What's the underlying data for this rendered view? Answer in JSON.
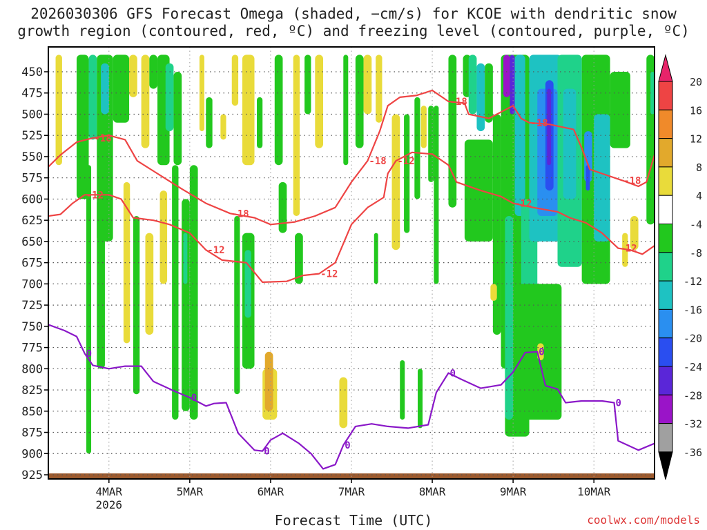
{
  "chart_data": {
    "type": "heatmap",
    "title_line1": "2026030306 GFS Forecast Omega (shaded, −cm/s) for KCOE with dendritic snow",
    "title_line2": "growth region (contoured, red, ºC) and freezing level (contoured, purple, ºC)",
    "xlabel": "Forecast Time (UTC)",
    "credit": "coolwx.com/models",
    "y_ticks": [
      450,
      475,
      500,
      525,
      550,
      575,
      600,
      625,
      650,
      675,
      700,
      725,
      750,
      775,
      800,
      825,
      850,
      875,
      900,
      925
    ],
    "x_ticks": [
      {
        "label": "4MAR",
        "sub": "2026",
        "t": 4.0
      },
      {
        "label": "5MAR",
        "sub": "",
        "t": 5.0
      },
      {
        "label": "6MAR",
        "sub": "",
        "t": 6.0
      },
      {
        "label": "7MAR",
        "sub": "",
        "t": 7.0
      },
      {
        "label": "8MAR",
        "sub": "",
        "t": 8.0
      },
      {
        "label": "9MAR",
        "sub": "",
        "t": 9.0
      },
      {
        "label": "10MAR",
        "sub": "",
        "t": 10.0
      }
    ],
    "t_range": [
      3.25,
      10.75
    ],
    "colorbar_levels": [
      20,
      16,
      12,
      8,
      4,
      -4,
      -8,
      -12,
      -16,
      -20,
      -24,
      -28,
      -32,
      -36
    ],
    "colorbar_colors": [
      "#e8246a",
      "#ee4444",
      "#f08a2a",
      "#e2a92c",
      "#e9db3a",
      "#ffffff",
      "#22c81e",
      "#1fd28a",
      "#1ec2c2",
      "#2a8ff0",
      "#2a4ef0",
      "#5a26d8",
      "#9a14c8",
      "#a0a0a0",
      "#000000"
    ],
    "omega_colors": {
      "strong_up": "#e2a92c",
      "weak_up": "#e9db3a",
      "weak_down": "#22c81e",
      "mod_down": "#1fd28a",
      "strong_down": "#1ec2c2",
      "very_strong_down": "#2a8ff0",
      "extreme_down": "#2a4ef0",
      "max_down": "#5a26d8",
      "peak_down": "#9a14c8"
    },
    "contour_labels": {
      "red": [
        "-18",
        "-18",
        "-18",
        "-18",
        "-18",
        "-12",
        "-12",
        "-12",
        "-12",
        "-12",
        "-12",
        "-18"
      ],
      "purple": [
        "0",
        "0",
        "0",
        "0",
        "0",
        "0",
        "0"
      ]
    },
    "isotherm_minus18": [
      [
        3.25,
        562
      ],
      [
        3.4,
        548
      ],
      [
        3.6,
        533
      ],
      [
        3.8,
        528
      ],
      [
        4.0,
        525
      ],
      [
        4.2,
        530
      ],
      [
        4.35,
        555
      ],
      [
        4.6,
        570
      ],
      [
        4.9,
        588
      ],
      [
        5.2,
        605
      ],
      [
        5.5,
        617
      ],
      [
        5.8,
        622
      ],
      [
        6.0,
        630
      ],
      [
        6.3,
        627
      ],
      [
        6.55,
        620
      ],
      [
        6.8,
        610
      ],
      [
        7.0,
        580
      ],
      [
        7.2,
        555
      ],
      [
        7.35,
        520
      ],
      [
        7.45,
        490
      ],
      [
        7.6,
        480
      ],
      [
        7.8,
        478
      ],
      [
        8.0,
        472
      ],
      [
        8.2,
        485
      ],
      [
        8.4,
        487
      ],
      [
        8.45,
        500
      ],
      [
        8.7,
        505
      ],
      [
        8.9,
        495
      ],
      [
        9.0,
        490
      ],
      [
        9.1,
        505
      ],
      [
        9.2,
        510
      ],
      [
        9.45,
        512
      ],
      [
        9.6,
        515
      ],
      [
        9.75,
        518
      ],
      [
        9.85,
        540
      ],
      [
        9.95,
        565
      ],
      [
        10.1,
        570
      ],
      [
        10.35,
        578
      ],
      [
        10.55,
        585
      ],
      [
        10.65,
        580
      ],
      [
        10.75,
        548
      ]
    ],
    "isotherm_minus12": [
      [
        3.25,
        620
      ],
      [
        3.4,
        618
      ],
      [
        3.55,
        605
      ],
      [
        3.7,
        595
      ],
      [
        4.0,
        595
      ],
      [
        4.15,
        600
      ],
      [
        4.3,
        622
      ],
      [
        4.55,
        625
      ],
      [
        4.75,
        630
      ],
      [
        5.0,
        640
      ],
      [
        5.2,
        660
      ],
      [
        5.4,
        672
      ],
      [
        5.7,
        675
      ],
      [
        5.9,
        698
      ],
      [
        6.2,
        697
      ],
      [
        6.4,
        690
      ],
      [
        6.6,
        688
      ],
      [
        6.8,
        675
      ],
      [
        7.0,
        630
      ],
      [
        7.2,
        610
      ],
      [
        7.4,
        598
      ],
      [
        7.45,
        570
      ],
      [
        7.55,
        555
      ],
      [
        7.75,
        545
      ],
      [
        8.0,
        547
      ],
      [
        8.2,
        560
      ],
      [
        8.3,
        580
      ],
      [
        8.6,
        590
      ],
      [
        8.85,
        597
      ],
      [
        9.0,
        605
      ],
      [
        9.25,
        610
      ],
      [
        9.55,
        615
      ],
      [
        9.7,
        622
      ],
      [
        9.9,
        628
      ],
      [
        10.1,
        640
      ],
      [
        10.3,
        658
      ],
      [
        10.45,
        660
      ],
      [
        10.6,
        665
      ],
      [
        10.75,
        655
      ]
    ],
    "freezing_level": [
      [
        3.25,
        748
      ],
      [
        3.45,
        755
      ],
      [
        3.6,
        762
      ],
      [
        3.7,
        782
      ],
      [
        3.8,
        796
      ],
      [
        4.0,
        800
      ],
      [
        4.2,
        797
      ],
      [
        4.4,
        797
      ],
      [
        4.55,
        815
      ],
      [
        4.8,
        826
      ],
      [
        5.0,
        834
      ],
      [
        5.2,
        844
      ],
      [
        5.3,
        841
      ],
      [
        5.45,
        840
      ],
      [
        5.6,
        876
      ],
      [
        5.8,
        896
      ],
      [
        5.9,
        897
      ],
      [
        6.0,
        884
      ],
      [
        6.15,
        876
      ],
      [
        6.35,
        888
      ],
      [
        6.5,
        900
      ],
      [
        6.65,
        918
      ],
      [
        6.8,
        913
      ],
      [
        6.9,
        890
      ],
      [
        7.05,
        868
      ],
      [
        7.25,
        865
      ],
      [
        7.45,
        868
      ],
      [
        7.7,
        870
      ],
      [
        7.95,
        866
      ],
      [
        8.05,
        828
      ],
      [
        8.2,
        805
      ],
      [
        8.35,
        812
      ],
      [
        8.6,
        823
      ],
      [
        8.85,
        819
      ],
      [
        9.0,
        804
      ],
      [
        9.15,
        781
      ],
      [
        9.3,
        780
      ],
      [
        9.4,
        820
      ],
      [
        9.55,
        824
      ],
      [
        9.65,
        840
      ],
      [
        9.85,
        838
      ],
      [
        10.0,
        838
      ],
      [
        10.1,
        838
      ],
      [
        10.25,
        840
      ],
      [
        10.3,
        885
      ],
      [
        10.55,
        896
      ],
      [
        10.75,
        888
      ]
    ],
    "omega_patches": [
      {
        "t0": 3.34,
        "t1": 3.42,
        "p0": 430,
        "p1": 560,
        "c": "weak_up"
      },
      {
        "t0": 3.6,
        "t1": 3.75,
        "p0": 430,
        "p1": 600,
        "c": "weak_down"
      },
      {
        "t0": 3.75,
        "t1": 3.85,
        "p0": 430,
        "p1": 530,
        "c": "mod_down"
      },
      {
        "t0": 3.85,
        "t1": 4.05,
        "p0": 430,
        "p1": 650,
        "c": "weak_down"
      },
      {
        "t0": 3.9,
        "t1": 4.0,
        "p0": 440,
        "p1": 500,
        "c": "strong_down"
      },
      {
        "t0": 4.05,
        "t1": 4.25,
        "p0": 430,
        "p1": 510,
        "c": "weak_down"
      },
      {
        "t0": 4.25,
        "t1": 4.35,
        "p0": 430,
        "p1": 480,
        "c": "weak_up"
      },
      {
        "t0": 4.4,
        "t1": 4.5,
        "p0": 430,
        "p1": 540,
        "c": "weak_up"
      },
      {
        "t0": 4.5,
        "t1": 4.6,
        "p0": 430,
        "p1": 470,
        "c": "weak_down"
      },
      {
        "t0": 4.6,
        "t1": 4.75,
        "p0": 430,
        "p1": 560,
        "c": "weak_down"
      },
      {
        "t0": 4.7,
        "t1": 4.8,
        "p0": 440,
        "p1": 520,
        "c": "mod_down"
      },
      {
        "t0": 4.8,
        "t1": 4.9,
        "p0": 450,
        "p1": 560,
        "c": "weak_down"
      },
      {
        "t0": 3.72,
        "t1": 3.78,
        "p0": 560,
        "p1": 900,
        "c": "weak_down"
      },
      {
        "t0": 3.85,
        "t1": 3.95,
        "p0": 600,
        "p1": 800,
        "c": "weak_down"
      },
      {
        "t0": 4.18,
        "t1": 4.26,
        "p0": 580,
        "p1": 770,
        "c": "weak_up"
      },
      {
        "t0": 4.3,
        "t1": 4.38,
        "p0": 620,
        "p1": 830,
        "c": "weak_down"
      },
      {
        "t0": 4.45,
        "t1": 4.55,
        "p0": 640,
        "p1": 760,
        "c": "weak_up"
      },
      {
        "t0": 4.63,
        "t1": 4.72,
        "p0": 590,
        "p1": 700,
        "c": "weak_up"
      },
      {
        "t0": 4.78,
        "t1": 4.86,
        "p0": 560,
        "p1": 860,
        "c": "weak_down"
      },
      {
        "t0": 4.9,
        "t1": 5.0,
        "p0": 600,
        "p1": 850,
        "c": "weak_down"
      },
      {
        "t0": 4.92,
        "t1": 4.97,
        "p0": 640,
        "p1": 700,
        "c": "mod_down"
      },
      {
        "t0": 5.0,
        "t1": 5.1,
        "p0": 560,
        "p1": 860,
        "c": "weak_down"
      },
      {
        "t0": 5.12,
        "t1": 5.18,
        "p0": 430,
        "p1": 520,
        "c": "weak_up"
      },
      {
        "t0": 5.2,
        "t1": 5.28,
        "p0": 480,
        "p1": 540,
        "c": "weak_down"
      },
      {
        "t0": 5.38,
        "t1": 5.45,
        "p0": 500,
        "p1": 530,
        "c": "weak_up"
      },
      {
        "t0": 5.52,
        "t1": 5.6,
        "p0": 430,
        "p1": 490,
        "c": "weak_up"
      },
      {
        "t0": 5.65,
        "t1": 5.8,
        "p0": 430,
        "p1": 560,
        "c": "weak_up"
      },
      {
        "t0": 5.55,
        "t1": 5.62,
        "p0": 620,
        "p1": 830,
        "c": "weak_down"
      },
      {
        "t0": 5.65,
        "t1": 5.8,
        "p0": 640,
        "p1": 800,
        "c": "weak_down"
      },
      {
        "t0": 5.68,
        "t1": 5.76,
        "p0": 660,
        "p1": 740,
        "c": "mod_down"
      },
      {
        "t0": 5.83,
        "t1": 5.9,
        "p0": 480,
        "p1": 540,
        "c": "weak_down"
      },
      {
        "t0": 5.9,
        "t1": 6.08,
        "p0": 800,
        "p1": 860,
        "c": "weak_up"
      },
      {
        "t0": 5.93,
        "t1": 6.03,
        "p0": 780,
        "p1": 850,
        "c": "strong_up"
      },
      {
        "t0": 6.05,
        "t1": 6.15,
        "p0": 430,
        "p1": 560,
        "c": "weak_down"
      },
      {
        "t0": 6.1,
        "t1": 6.2,
        "p0": 580,
        "p1": 640,
        "c": "weak_down"
      },
      {
        "t0": 6.28,
        "t1": 6.36,
        "p0": 430,
        "p1": 620,
        "c": "weak_up"
      },
      {
        "t0": 6.3,
        "t1": 6.4,
        "p0": 640,
        "p1": 700,
        "c": "weak_down"
      },
      {
        "t0": 6.42,
        "t1": 6.5,
        "p0": 430,
        "p1": 500,
        "c": "weak_down"
      },
      {
        "t0": 6.55,
        "t1": 6.65,
        "p0": 430,
        "p1": 540,
        "c": "weak_up"
      },
      {
        "t0": 6.85,
        "t1": 6.95,
        "p0": 810,
        "p1": 870,
        "c": "weak_up"
      },
      {
        "t0": 6.9,
        "t1": 6.96,
        "p0": 430,
        "p1": 560,
        "c": "weak_down"
      },
      {
        "t0": 7.05,
        "t1": 7.15,
        "p0": 430,
        "p1": 540,
        "c": "weak_down"
      },
      {
        "t0": 7.15,
        "t1": 7.25,
        "p0": 430,
        "p1": 500,
        "c": "weak_up"
      },
      {
        "t0": 7.3,
        "t1": 7.38,
        "p0": 430,
        "p1": 510,
        "c": "weak_up"
      },
      {
        "t0": 7.5,
        "t1": 7.6,
        "p0": 500,
        "p1": 660,
        "c": "weak_up"
      },
      {
        "t0": 7.65,
        "t1": 7.72,
        "p0": 500,
        "p1": 640,
        "c": "weak_down"
      },
      {
        "t0": 7.78,
        "t1": 7.85,
        "p0": 480,
        "p1": 600,
        "c": "weak_down"
      },
      {
        "t0": 7.86,
        "t1": 7.93,
        "p0": 490,
        "p1": 540,
        "c": "weak_up"
      },
      {
        "t0": 7.95,
        "t1": 8.02,
        "p0": 490,
        "p1": 580,
        "c": "weak_down"
      },
      {
        "t0": 8.02,
        "t1": 8.08,
        "p0": 490,
        "p1": 700,
        "c": "weak_down"
      },
      {
        "t0": 8.2,
        "t1": 8.3,
        "p0": 430,
        "p1": 610,
        "c": "weak_down"
      },
      {
        "t0": 8.38,
        "t1": 8.48,
        "p0": 430,
        "p1": 480,
        "c": "weak_down"
      },
      {
        "t0": 8.4,
        "t1": 8.75,
        "p0": 530,
        "p1": 650,
        "c": "weak_down"
      },
      {
        "t0": 8.45,
        "t1": 8.55,
        "p0": 430,
        "p1": 500,
        "c": "mod_down"
      },
      {
        "t0": 8.55,
        "t1": 8.65,
        "p0": 440,
        "p1": 520,
        "c": "strong_down"
      },
      {
        "t0": 8.65,
        "t1": 8.75,
        "p0": 440,
        "p1": 510,
        "c": "weak_down"
      },
      {
        "t0": 8.75,
        "t1": 8.85,
        "p0": 500,
        "p1": 760,
        "c": "weak_down"
      },
      {
        "t0": 8.85,
        "t1": 9.0,
        "p0": 430,
        "p1": 800,
        "c": "weak_down"
      },
      {
        "t0": 8.9,
        "t1": 9.2,
        "p0": 430,
        "p1": 880,
        "c": "weak_down"
      },
      {
        "t0": 8.9,
        "t1": 9.0,
        "p0": 620,
        "p1": 860,
        "c": "mod_down"
      },
      {
        "t0": 8.88,
        "t1": 8.96,
        "p0": 430,
        "p1": 480,
        "c": "peak_down"
      },
      {
        "t0": 8.96,
        "t1": 9.02,
        "p0": 430,
        "p1": 500,
        "c": "max_down"
      },
      {
        "t0": 9.02,
        "t1": 9.15,
        "p0": 430,
        "p1": 620,
        "c": "strong_down"
      },
      {
        "t0": 9.1,
        "t1": 9.3,
        "p0": 600,
        "p1": 800,
        "c": "mod_down"
      },
      {
        "t0": 9.2,
        "t1": 9.6,
        "p0": 430,
        "p1": 650,
        "c": "strong_down"
      },
      {
        "t0": 9.3,
        "t1": 9.55,
        "p0": 470,
        "p1": 620,
        "c": "very_strong_down"
      },
      {
        "t0": 9.4,
        "t1": 9.5,
        "p0": 460,
        "p1": 590,
        "c": "extreme_down"
      },
      {
        "t0": 9.42,
        "t1": 9.47,
        "p0": 470,
        "p1": 560,
        "c": "max_down"
      },
      {
        "t0": 9.55,
        "t1": 9.85,
        "p0": 430,
        "p1": 680,
        "c": "mod_down"
      },
      {
        "t0": 9.62,
        "t1": 9.78,
        "p0": 470,
        "p1": 600,
        "c": "strong_down"
      },
      {
        "t0": 9.85,
        "t1": 10.2,
        "p0": 430,
        "p1": 700,
        "c": "weak_down"
      },
      {
        "t0": 9.88,
        "t1": 9.98,
        "p0": 520,
        "p1": 580,
        "c": "very_strong_down"
      },
      {
        "t0": 9.9,
        "t1": 9.95,
        "p0": 560,
        "p1": 590,
        "c": "extreme_down"
      },
      {
        "t0": 10.0,
        "t1": 10.2,
        "p0": 500,
        "p1": 650,
        "c": "strong_down"
      },
      {
        "t0": 10.2,
        "t1": 10.45,
        "p0": 450,
        "p1": 540,
        "c": "weak_down"
      },
      {
        "t0": 10.35,
        "t1": 10.42,
        "p0": 640,
        "p1": 680,
        "c": "weak_up"
      },
      {
        "t0": 10.45,
        "t1": 10.55,
        "p0": 620,
        "p1": 660,
        "c": "weak_up"
      },
      {
        "t0": 10.65,
        "t1": 10.75,
        "p0": 430,
        "p1": 630,
        "c": "weak_down"
      },
      {
        "t0": 10.7,
        "t1": 10.75,
        "p0": 450,
        "p1": 500,
        "c": "mod_down"
      },
      {
        "t0": 9.05,
        "t1": 9.6,
        "p0": 700,
        "p1": 860,
        "c": "weak_down"
      },
      {
        "t0": 9.3,
        "t1": 9.38,
        "p0": 770,
        "p1": 790,
        "c": "weak_up"
      },
      {
        "t0": 8.72,
        "t1": 8.8,
        "p0": 700,
        "p1": 720,
        "c": "weak_up"
      },
      {
        "t0": 7.82,
        "t1": 7.88,
        "p0": 800,
        "p1": 870,
        "c": "weak_down"
      },
      {
        "t0": 7.6,
        "t1": 7.66,
        "p0": 790,
        "p1": 860,
        "c": "weak_down"
      },
      {
        "t0": 7.28,
        "t1": 7.33,
        "p0": 640,
        "p1": 700,
        "c": "weak_down"
      }
    ]
  }
}
